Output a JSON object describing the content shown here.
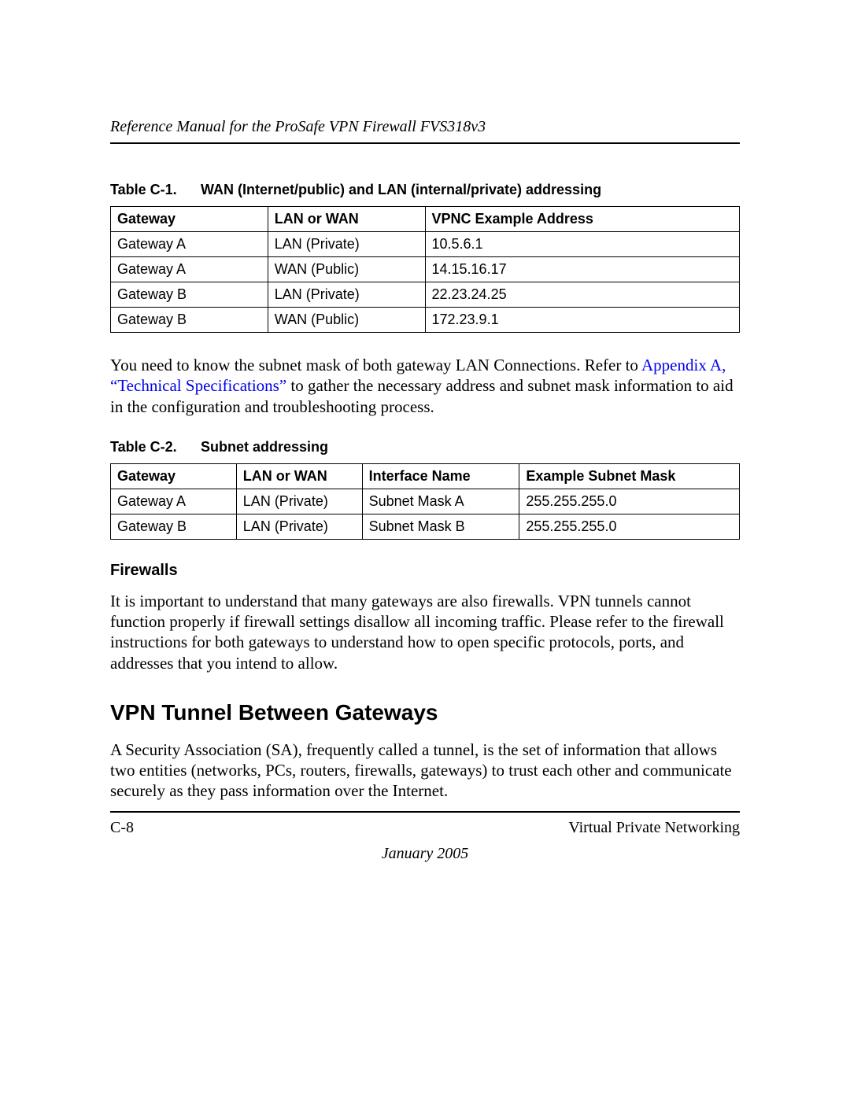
{
  "header": {
    "running_title": "Reference Manual for the ProSafe VPN Firewall FVS318v3"
  },
  "table1": {
    "caption_num": "Table C-1.",
    "caption_title": "WAN (Internet/public) and LAN (internal/private) addressing",
    "columns": [
      "Gateway",
      "LAN or WAN",
      "VPNC Example Address"
    ],
    "rows": [
      [
        "Gateway A",
        "LAN (Private)",
        "10.5.6.1"
      ],
      [
        "Gateway A",
        "WAN (Public)",
        "14.15.16.17"
      ],
      [
        "Gateway B",
        "LAN (Private)",
        "22.23.24.25"
      ],
      [
        "Gateway B",
        "WAN (Public)",
        "172.23.9.1"
      ]
    ]
  },
  "para1": {
    "pre": "You need to know the subnet mask of both gateway LAN Connections. Refer to ",
    "link": "Appendix A, “Technical Specifications”",
    "post": " to gather the necessary address and subnet mask information to aid in the configuration and troubleshooting process."
  },
  "table2": {
    "caption_num": "Table C-2.",
    "caption_title": "Subnet addressing",
    "columns": [
      "Gateway",
      "LAN or WAN",
      "Interface Name",
      "Example Subnet Mask"
    ],
    "rows": [
      [
        "Gateway A",
        "LAN (Private)",
        "Subnet Mask A",
        "255.255.255.0"
      ],
      [
        "Gateway B",
        "LAN (Private)",
        "Subnet Mask B",
        "255.255.255.0"
      ]
    ]
  },
  "firewalls": {
    "heading": "Firewalls",
    "text": "It is important to understand that many gateways are also firewalls. VPN tunnels cannot function properly if firewall settings disallow all incoming traffic. Please refer to the firewall instructions for both gateways to understand how to open specific protocols, ports, and addresses that you intend to allow."
  },
  "section": {
    "heading": "VPN Tunnel Between Gateways",
    "text": "A Security Association (SA), frequently called a tunnel, is the set of information that allows two entities (networks, PCs, routers, firewalls, gateways) to trust each other and communicate securely as they pass information over the Internet."
  },
  "footer": {
    "page_num": "C-8",
    "section_name": "Virtual Private Networking",
    "date": "January 2005"
  }
}
